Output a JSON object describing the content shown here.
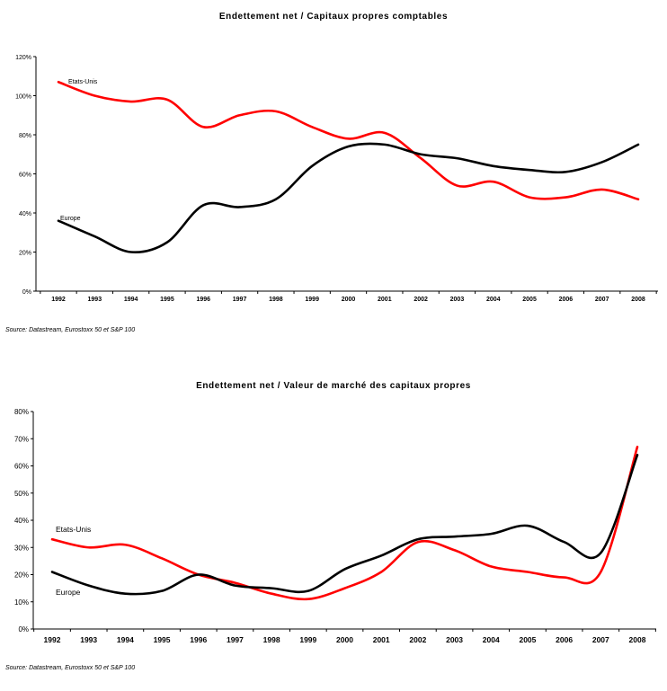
{
  "chart_data": [
    {
      "type": "line",
      "title": "Endettement net / Capitaux propres comptables",
      "source": "Source: Datastream, Eurostoxx 50 et S&P 100",
      "x": [
        "1992",
        "1993",
        "1994",
        "1995",
        "1996",
        "1997",
        "1998",
        "1999",
        "2000",
        "2001",
        "2002",
        "2003",
        "2004",
        "2005",
        "2006",
        "2007",
        "2008"
      ],
      "yticks": [
        "0%",
        "20%",
        "40%",
        "60%",
        "80%",
        "100%",
        "120%"
      ],
      "ylim": [
        0,
        120
      ],
      "grid": false,
      "series": [
        {
          "name": "Etats-Unis",
          "color": "#ff0000",
          "values": [
            107,
            100,
            97,
            98,
            84,
            90,
            92,
            84,
            78,
            81,
            68,
            54,
            56,
            48,
            48,
            52,
            47
          ]
        },
        {
          "name": "Europe",
          "color": "#000000",
          "values": [
            36,
            28,
            20,
            25,
            44,
            43,
            47,
            64,
            74,
            75,
            70,
            68,
            64,
            62,
            61,
            66,
            75
          ]
        }
      ]
    },
    {
      "type": "line",
      "title": "Endettement net / Valeur de marché des capitaux propres",
      "source": "Source: Datastream, Eurostoxx 50 et S&P 100",
      "x": [
        "1992",
        "1993",
        "1994",
        "1995",
        "1996",
        "1997",
        "1998",
        "1999",
        "2000",
        "2001",
        "2002",
        "2003",
        "2004",
        "2005",
        "2006",
        "2007",
        "2008"
      ],
      "yticks": [
        "0%",
        "10%",
        "20%",
        "30%",
        "40%",
        "50%",
        "60%",
        "70%",
        "80%"
      ],
      "ylim": [
        0,
        80
      ],
      "grid": false,
      "series": [
        {
          "name": "Etats-Unis",
          "color": "#ff0000",
          "values": [
            33,
            30,
            31,
            26,
            20,
            17,
            13,
            11,
            15,
            21,
            32,
            29,
            23,
            21,
            19,
            21,
            67
          ]
        },
        {
          "name": "Europe",
          "color": "#000000",
          "values": [
            21,
            16,
            13,
            14,
            20,
            16,
            15,
            14,
            22,
            27,
            33,
            34,
            35,
            38,
            32,
            28,
            64
          ]
        }
      ]
    }
  ]
}
